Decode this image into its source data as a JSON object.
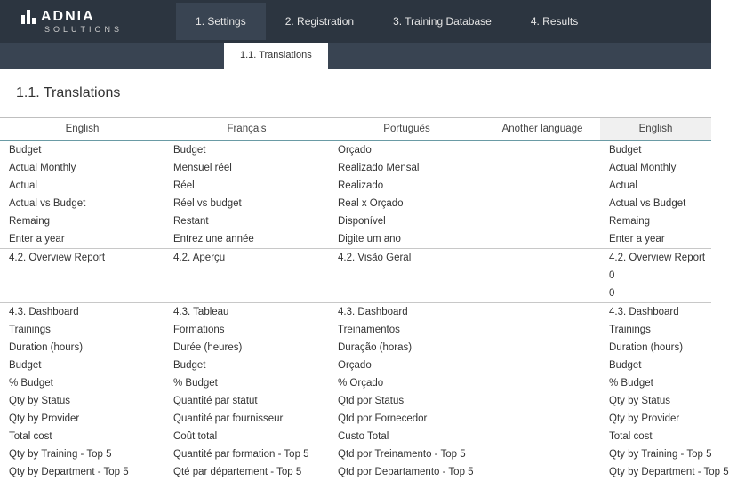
{
  "brand": {
    "name": "ADNIA",
    "sub": "SOLUTIONS"
  },
  "tabs": {
    "main": [
      "1. Settings",
      "2. Registration",
      "3. Training Database",
      "4. Results"
    ],
    "activeMain": 0,
    "sub": "1.1. Translations"
  },
  "page": {
    "title": "1.1. Translations"
  },
  "table": {
    "headers": [
      "English",
      "Français",
      "Português",
      "Another language",
      "English"
    ],
    "rows": [
      {
        "c": [
          "Budget",
          "Budget",
          "Orçado",
          "",
          "Budget"
        ]
      },
      {
        "c": [
          "Actual Monthly",
          "Mensuel réel",
          "Realizado Mensal",
          "",
          "Actual Monthly"
        ]
      },
      {
        "c": [
          "Actual",
          "Réel",
          "Realizado",
          "",
          "Actual"
        ]
      },
      {
        "c": [
          "Actual vs Budget",
          "Réel vs budget",
          "Real x Orçado",
          "",
          "Actual vs Budget"
        ]
      },
      {
        "c": [
          "Remaing",
          "Restant",
          "Disponível",
          "",
          "Remaing"
        ]
      },
      {
        "c": [
          "Enter a year",
          "Entrez une année",
          "Digite um ano",
          "",
          "Enter a year"
        ]
      },
      {
        "c": [
          "4.2. Overview Report",
          "4.2. Aperçu",
          "4.2. Visão Geral",
          "",
          "4.2. Overview Report"
        ],
        "sec": true
      },
      {
        "c": [
          "",
          "",
          "",
          "",
          "0"
        ]
      },
      {
        "c": [
          "",
          "",
          "",
          "",
          "0"
        ]
      },
      {
        "c": [
          "4.3. Dashboard",
          "4.3. Tableau",
          "4.3. Dashboard",
          "",
          "4.3. Dashboard"
        ],
        "sec": true
      },
      {
        "c": [
          "Trainings",
          "Formations",
          "Treinamentos",
          "",
          "Trainings"
        ]
      },
      {
        "c": [
          " Duration (hours)",
          "Durée (heures)",
          "Duração (horas)",
          "",
          " Duration (hours)"
        ]
      },
      {
        "c": [
          "Budget",
          "Budget",
          "Orçado",
          "",
          "Budget"
        ]
      },
      {
        "c": [
          "% Budget",
          "% Budget",
          "% Orçado",
          "",
          "% Budget"
        ]
      },
      {
        "c": [
          "Qty by Status",
          "Quantité par statut",
          "Qtd por Status",
          "",
          "Qty by Status"
        ]
      },
      {
        "c": [
          "Qty by Provider",
          "Quantité par fournisseur",
          "Qtd por Fornecedor",
          "",
          "Qty by Provider"
        ]
      },
      {
        "c": [
          "Total cost",
          "Coût total",
          "Custo Total",
          "",
          "Total cost"
        ]
      },
      {
        "c": [
          "Qty by Training - Top 5",
          "Quantité par formation - Top 5",
          "Qtd por Treinamento - Top 5",
          "",
          "Qty by Training - Top 5"
        ]
      },
      {
        "c": [
          "Qty by Department - Top 5",
          "Qté par département - Top 5",
          "Qtd por Departamento - Top 5",
          "",
          "Qty by Department - Top 5"
        ]
      }
    ]
  }
}
